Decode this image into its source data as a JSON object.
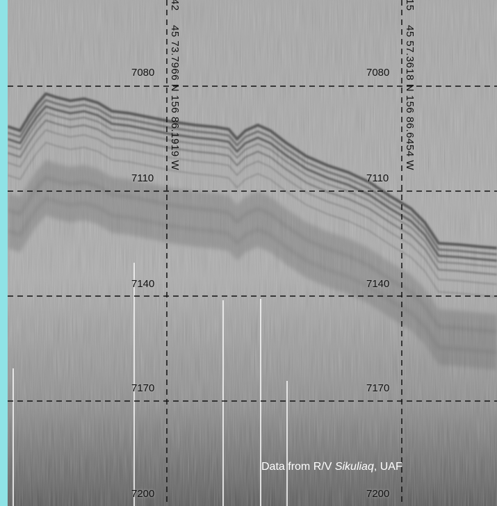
{
  "depth_labels": [
    "7080",
    "7110",
    "7140",
    "7170",
    "7200"
  ],
  "coordinate_left": {
    "prefix": "42",
    "text": "45 73.7966 N 156 86.1919 W"
  },
  "coordinate_right": {
    "prefix": "15",
    "text": "45 57.3618 N 156 86.6454 W"
  },
  "credit": {
    "prefix": "Data from R/V ",
    "vessel": "Sikuliaq",
    "suffix": ", UAF"
  },
  "colors": {
    "frame": "#8fe3e6",
    "background": "#a9a9a9",
    "reflector": "#3a3a3a",
    "gridline": "#111111",
    "credit_text": "#ffffff"
  }
}
